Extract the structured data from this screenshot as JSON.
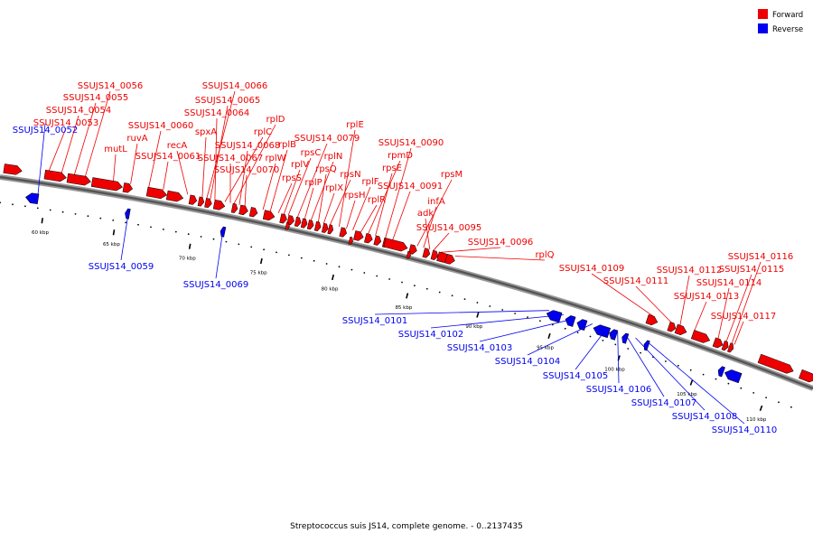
{
  "legend": {
    "forward_label": "Forward",
    "reverse_label": "Reverse",
    "forward_color": "#ee0000",
    "reverse_color": "#0000ee"
  },
  "caption": "Streptococcus suis JS14, complete genome. - 0..2137435",
  "colors": {
    "backbone": "#555555",
    "connector": "#999999",
    "tick": "#000000"
  },
  "ticks": [
    {
      "label": "60 kbp"
    },
    {
      "label": "65 kbp"
    },
    {
      "label": "70 kbp"
    },
    {
      "label": "75 kbp"
    },
    {
      "label": "80 kbp"
    },
    {
      "label": "85 kbp"
    },
    {
      "label": "90 kbp"
    },
    {
      "label": "95 kbp"
    },
    {
      "label": "100 kbp"
    },
    {
      "label": "105 kbp"
    },
    {
      "label": "110 kbp"
    }
  ],
  "forward_labels": [
    "SSUJS14_0056",
    "SSUJS14_0055",
    "SSUJS14_0054",
    "SSUJS14_0053",
    "mutL",
    "ruvA",
    "SSUJS14_0060",
    "SSUJS14_0061",
    "recA",
    "spxA",
    "SSUJS14_0066",
    "SSUJS14_0065",
    "SSUJS14_0064",
    "rplC",
    "rplD",
    "SSUJS14_0068",
    "SSUJS14_0067",
    "SSUJS14_0070",
    "rplW",
    "rplB",
    "rpsS",
    "rplV",
    "rpsC",
    "SSUJS14_0079",
    "rplP",
    "rplN",
    "rpsQ",
    "rplX",
    "rpsN",
    "rplE",
    "rpsH",
    "rplF",
    "rplR",
    "rpmD",
    "rpsE",
    "SSUJS14_0090",
    "SSUJS14_0091",
    "rpsM",
    "infA",
    "adk",
    "SSUJS14_0095",
    "SSUJS14_0096",
    "rplQ",
    "SSUJS14_0109",
    "SSUJS14_0111",
    "SSUJS14_0112",
    "SSUJS14_0113",
    "SSUJS14_0114",
    "SSUJS14_0115",
    "SSUJS14_0116",
    "SSUJS14_0117"
  ],
  "reverse_labels": [
    "SSUJS14_0052",
    "SSUJS14_0059",
    "SSUJS14_0069",
    "SSUJS14_0101",
    "SSUJS14_0102",
    "SSUJS14_0103",
    "SSUJS14_0104",
    "SSUJS14_0105",
    "SSUJS14_0106",
    "SSUJS14_0107",
    "SSUJS14_0108",
    "SSUJS14_0110"
  ]
}
